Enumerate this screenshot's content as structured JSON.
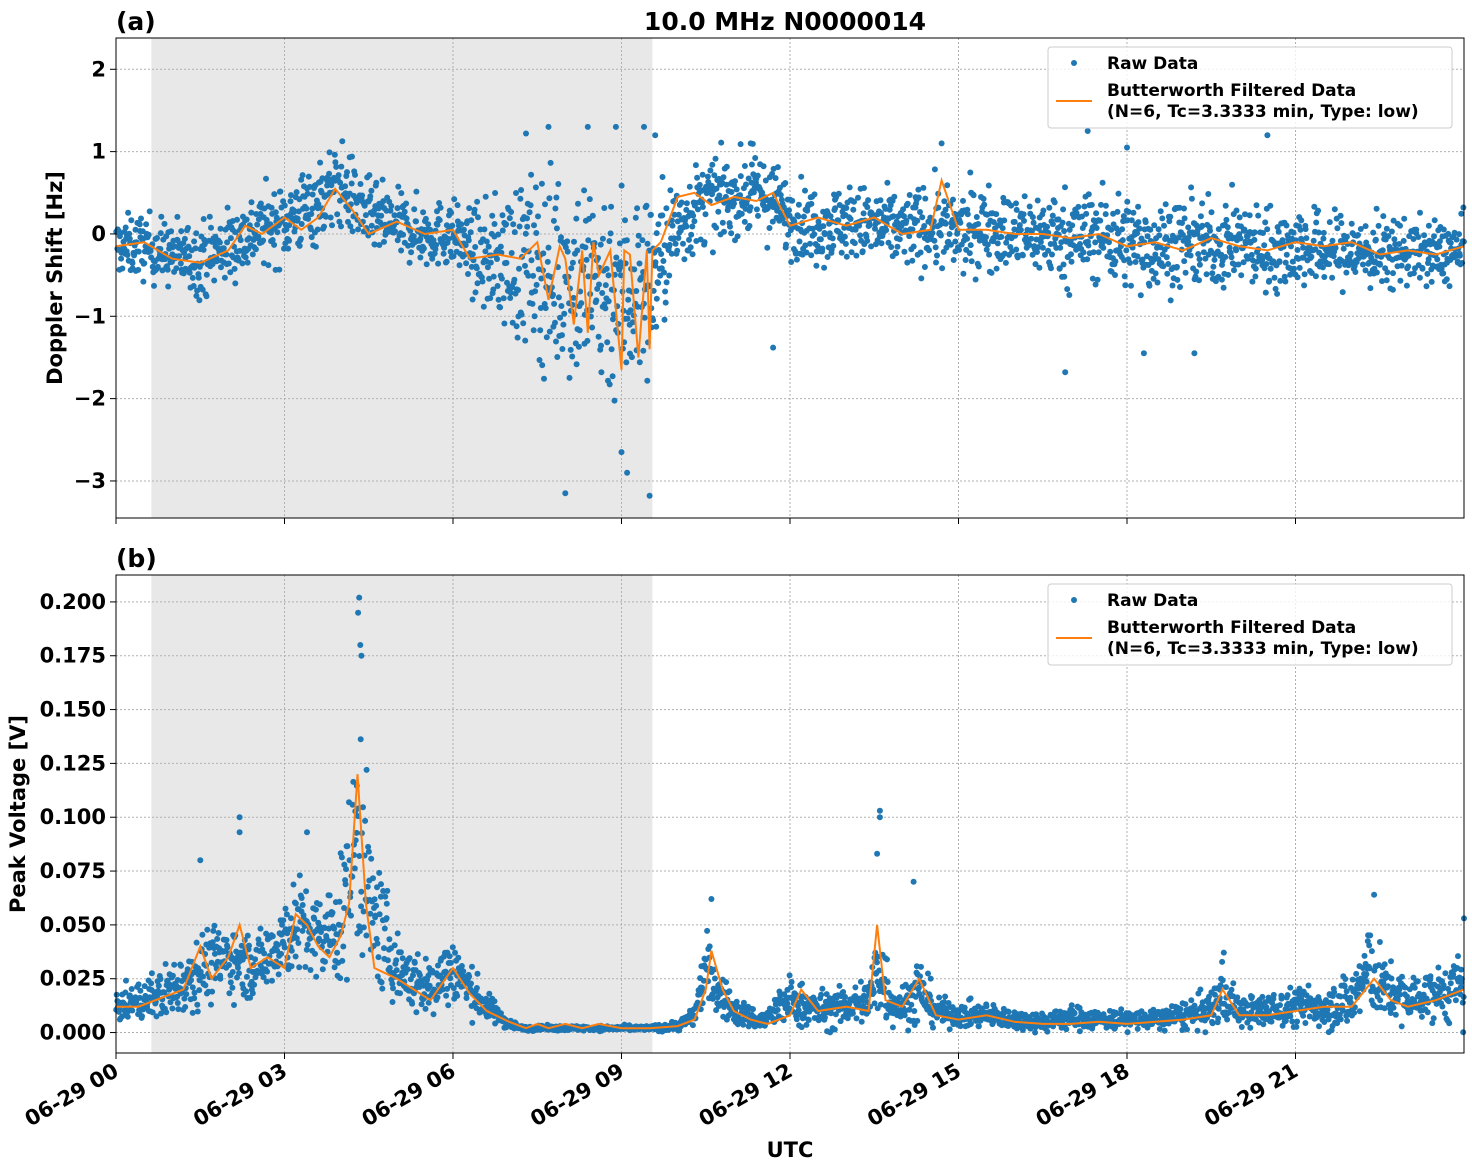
{
  "figure": {
    "title": "10.0 MHz N0000014",
    "xlabel": "UTC",
    "x_ticks": [
      "06-29 00",
      "06-29 03",
      "06-29 06",
      "06-29 09",
      "06-29 12",
      "06-29 15",
      "06-29 18",
      "06-29 21"
    ],
    "colors": {
      "raw": "#1f77b4",
      "filtered": "#ff7f0e",
      "shade": "#e8e8e8",
      "grid": "#b0b0b0"
    }
  },
  "legend": {
    "raw": "Raw Data",
    "filtered_line1": "Butterworth Filtered Data",
    "filtered_line2": "(N=6, Tc=3.3333 min, Type: low)"
  },
  "chart_data": [
    {
      "panel": "(a)",
      "type": "scatter",
      "ylabel": "Doppler Shift [Hz]",
      "xlim_hours": [
        0,
        24
      ],
      "ylim": [
        -3.45,
        2.38
      ],
      "y_ticks": [
        2,
        1,
        0,
        -1,
        -2,
        -3
      ],
      "y_tick_labels": [
        "2",
        "1",
        "0",
        "−1",
        "−2",
        "−3"
      ],
      "grid": true,
      "legend_position": "upper right",
      "shaded_interval_hours": [
        0.63,
        9.55
      ],
      "series": [
        {
          "name": "Raw Data",
          "kind": "scatter",
          "envelope": {
            "x_hours": [
              0,
              0.5,
              1,
              1.5,
              2,
              2.5,
              3,
              3.5,
              4,
              4.5,
              5,
              5.5,
              6,
              6.5,
              7,
              7.5,
              8,
              8.5,
              9,
              9.5,
              10,
              10.5,
              11,
              11.5,
              12,
              12.5,
              13,
              13.5,
              14,
              14.5,
              15,
              15.5,
              16,
              16.5,
              17,
              17.5,
              18,
              18.5,
              19,
              19.5,
              20,
              20.5,
              21,
              21.5,
              22,
              22.5,
              23,
              23.5,
              24
            ],
            "y_center": [
              -0.15,
              -0.15,
              -0.25,
              -0.3,
              -0.15,
              0.05,
              0.15,
              0.35,
              0.6,
              0.2,
              0.1,
              0.0,
              0.0,
              -0.3,
              -0.3,
              -0.4,
              -0.5,
              -0.6,
              -0.7,
              -0.6,
              0.1,
              0.4,
              0.45,
              0.5,
              0.2,
              0.1,
              0.15,
              0.1,
              0.05,
              0.1,
              0.0,
              0.1,
              0.0,
              0.0,
              -0.05,
              0.0,
              -0.1,
              -0.15,
              -0.1,
              -0.15,
              -0.1,
              -0.2,
              -0.15,
              -0.2,
              -0.2,
              -0.25,
              -0.2,
              -0.25,
              -0.2
            ],
            "spread": [
              0.3,
              0.35,
              0.35,
              0.4,
              0.4,
              0.4,
              0.4,
              0.45,
              0.45,
              0.4,
              0.35,
              0.35,
              0.35,
              0.5,
              0.8,
              1.0,
              1.1,
              1.2,
              1.2,
              1.0,
              0.5,
              0.45,
              0.4,
              0.45,
              0.4,
              0.4,
              0.4,
              0.4,
              0.4,
              0.45,
              0.45,
              0.45,
              0.4,
              0.45,
              0.5,
              0.5,
              0.5,
              0.5,
              0.45,
              0.45,
              0.45,
              0.45,
              0.45,
              0.4,
              0.4,
              0.4,
              0.35,
              0.35,
              0.35
            ]
          },
          "outliers": [
            [
              7.3,
              1.22
            ],
            [
              7.7,
              1.3
            ],
            [
              8.0,
              -3.15
            ],
            [
              8.4,
              1.3
            ],
            [
              9.4,
              1.3
            ],
            [
              9.1,
              -2.9
            ],
            [
              9.5,
              -3.18
            ],
            [
              9.0,
              -2.65
            ],
            [
              11.3,
              1.1
            ],
            [
              11.7,
              -1.38
            ],
            [
              14.7,
              1.1
            ],
            [
              16.9,
              -1.68
            ],
            [
              17.3,
              1.25
            ],
            [
              18.0,
              1.05
            ],
            [
              18.3,
              -1.45
            ],
            [
              19.2,
              -1.45
            ],
            [
              20.5,
              1.2
            ],
            [
              8.9,
              1.3
            ],
            [
              9.6,
              1.2
            ]
          ]
        },
        {
          "name": "Butterworth Filtered Data\n(N=6, Tc=3.3333 min, Type: low)",
          "kind": "line",
          "x_hours": [
            0,
            0.5,
            1,
            1.5,
            2,
            2.3,
            2.6,
            3,
            3.3,
            3.6,
            3.9,
            4.2,
            4.5,
            5,
            5.5,
            6,
            6.3,
            6.8,
            7.2,
            7.5,
            7.7,
            7.9,
            8.0,
            8.15,
            8.3,
            8.4,
            8.5,
            8.6,
            8.8,
            9.0,
            9.05,
            9.15,
            9.3,
            9.45,
            9.5,
            9.55,
            9.7,
            10.0,
            10.3,
            10.6,
            11.0,
            11.4,
            11.7,
            12.0,
            12.5,
            13.0,
            13.5,
            14.0,
            14.5,
            14.7,
            15.0,
            15.5,
            16.0,
            16.5,
            17.0,
            17.5,
            18.0,
            18.5,
            19.0,
            19.5,
            20.0,
            20.5,
            21.0,
            21.5,
            22.0,
            22.5,
            23.0,
            23.5,
            24.0
          ],
          "y": [
            -0.15,
            -0.1,
            -0.3,
            -0.35,
            -0.2,
            0.1,
            0.0,
            0.2,
            0.05,
            0.2,
            0.55,
            0.3,
            0.0,
            0.15,
            0.0,
            0.05,
            -0.3,
            -0.25,
            -0.3,
            -0.1,
            -0.8,
            -0.15,
            -0.3,
            -1.1,
            -0.2,
            -1.2,
            -0.1,
            -0.5,
            -0.2,
            -1.65,
            -0.2,
            -0.25,
            -1.5,
            -0.2,
            -1.4,
            -0.2,
            -0.1,
            0.45,
            0.5,
            0.35,
            0.45,
            0.4,
            0.5,
            0.1,
            0.2,
            0.1,
            0.2,
            0.0,
            0.05,
            0.65,
            0.05,
            0.05,
            0.0,
            0.0,
            -0.05,
            0.0,
            -0.15,
            -0.1,
            -0.2,
            -0.05,
            -0.15,
            -0.2,
            -0.1,
            -0.15,
            -0.1,
            -0.25,
            -0.2,
            -0.25,
            -0.15
          ]
        }
      ]
    },
    {
      "panel": "(b)",
      "type": "scatter",
      "ylabel": "Peak Voltage [V]",
      "xlim_hours": [
        0,
        24
      ],
      "ylim": [
        -0.0095,
        0.2125
      ],
      "y_ticks": [
        0.2,
        0.175,
        0.15,
        0.125,
        0.1,
        0.075,
        0.05,
        0.025,
        0.0
      ],
      "y_tick_labels": [
        "0.200",
        "0.175",
        "0.150",
        "0.125",
        "0.100",
        "0.075",
        "0.050",
        "0.025",
        "0.000"
      ],
      "grid": true,
      "legend_position": "upper right",
      "shaded_interval_hours": [
        0.63,
        9.55
      ],
      "series": [
        {
          "name": "Raw Data",
          "kind": "scatter",
          "envelope": {
            "x_hours": [
              0,
              0.5,
              1,
              1.5,
              2,
              2.5,
              3,
              3.3,
              3.6,
              4.0,
              4.2,
              4.35,
              4.5,
              5.0,
              5.5,
              6.0,
              6.3,
              6.6,
              6.9,
              7.2,
              8.0,
              9.0,
              9.5,
              10.0,
              10.3,
              10.5,
              10.7,
              11.0,
              11.5,
              12.0,
              12.5,
              13.0,
              13.4,
              13.6,
              13.8,
              14.0,
              14.3,
              14.6,
              15.0,
              15.5,
              16.0,
              16.5,
              17.0,
              17.5,
              18.0,
              18.5,
              19.0,
              19.5,
              19.7,
              20.0,
              20.5,
              21.0,
              21.5,
              22.0,
              22.3,
              22.6,
              23.0,
              23.5,
              24.0
            ],
            "y_center": [
              0.012,
              0.015,
              0.02,
              0.03,
              0.035,
              0.03,
              0.045,
              0.05,
              0.042,
              0.05,
              0.08,
              0.1,
              0.06,
              0.03,
              0.02,
              0.03,
              0.02,
              0.012,
              0.006,
              0.002,
              0.002,
              0.002,
              0.002,
              0.003,
              0.008,
              0.03,
              0.02,
              0.01,
              0.005,
              0.015,
              0.01,
              0.012,
              0.015,
              0.03,
              0.015,
              0.012,
              0.02,
              0.01,
              0.008,
              0.008,
              0.006,
              0.005,
              0.007,
              0.006,
              0.006,
              0.006,
              0.008,
              0.01,
              0.02,
              0.01,
              0.01,
              0.012,
              0.012,
              0.015,
              0.03,
              0.02,
              0.015,
              0.018,
              0.02
            ],
            "spread": [
              0.006,
              0.008,
              0.012,
              0.015,
              0.015,
              0.012,
              0.018,
              0.02,
              0.018,
              0.025,
              0.04,
              0.06,
              0.03,
              0.015,
              0.012,
              0.015,
              0.01,
              0.006,
              0.003,
              0.001,
              0.001,
              0.001,
              0.001,
              0.002,
              0.004,
              0.015,
              0.01,
              0.006,
              0.004,
              0.01,
              0.008,
              0.008,
              0.01,
              0.025,
              0.01,
              0.008,
              0.015,
              0.006,
              0.005,
              0.005,
              0.004,
              0.004,
              0.005,
              0.004,
              0.004,
              0.004,
              0.006,
              0.008,
              0.015,
              0.006,
              0.007,
              0.008,
              0.009,
              0.012,
              0.02,
              0.012,
              0.01,
              0.01,
              0.015
            ]
          },
          "outliers": [
            [
              4.33,
              0.202
            ],
            [
              4.31,
              0.195
            ],
            [
              4.35,
              0.18
            ],
            [
              4.37,
              0.175
            ],
            [
              2.2,
              0.1
            ],
            [
              2.2,
              0.093
            ],
            [
              1.5,
              0.08
            ],
            [
              3.4,
              0.093
            ],
            [
              13.6,
              0.103
            ],
            [
              13.6,
              0.1
            ],
            [
              13.55,
              0.083
            ],
            [
              14.2,
              0.07
            ],
            [
              22.4,
              0.064
            ],
            [
              24.0,
              0.053
            ],
            [
              10.6,
              0.062
            ]
          ]
        },
        {
          "name": "Butterworth Filtered Data\n(N=6, Tc=3.3333 min, Type: low)",
          "kind": "line",
          "x_hours": [
            0,
            0.4,
            0.8,
            1.2,
            1.5,
            1.7,
            2.0,
            2.2,
            2.4,
            2.7,
            3.0,
            3.2,
            3.4,
            3.6,
            3.8,
            4.0,
            4.15,
            4.3,
            4.45,
            4.6,
            5.0,
            5.3,
            5.6,
            6.0,
            6.3,
            6.6,
            7.0,
            7.3,
            7.5,
            7.7,
            8.0,
            8.3,
            8.6,
            9.0,
            9.5,
            10.0,
            10.3,
            10.5,
            10.6,
            10.8,
            11.0,
            11.3,
            11.6,
            12.0,
            12.2,
            12.5,
            13.0,
            13.4,
            13.55,
            13.7,
            14.0,
            14.3,
            14.6,
            15.0,
            15.5,
            16.0,
            16.5,
            17.0,
            17.5,
            18.0,
            18.5,
            19.0,
            19.5,
            19.7,
            20.0,
            20.5,
            21.0,
            21.5,
            22.0,
            22.4,
            22.7,
            23.0,
            23.5,
            24.0
          ],
          "y": [
            0.012,
            0.012,
            0.016,
            0.02,
            0.04,
            0.025,
            0.035,
            0.05,
            0.03,
            0.035,
            0.03,
            0.055,
            0.05,
            0.04,
            0.035,
            0.045,
            0.06,
            0.12,
            0.06,
            0.03,
            0.025,
            0.02,
            0.015,
            0.03,
            0.018,
            0.01,
            0.005,
            0.002,
            0.004,
            0.002,
            0.004,
            0.002,
            0.004,
            0.002,
            0.002,
            0.003,
            0.006,
            0.02,
            0.038,
            0.02,
            0.01,
            0.006,
            0.004,
            0.008,
            0.02,
            0.01,
            0.012,
            0.01,
            0.05,
            0.015,
            0.012,
            0.025,
            0.008,
            0.006,
            0.008,
            0.005,
            0.004,
            0.004,
            0.005,
            0.004,
            0.005,
            0.006,
            0.008,
            0.02,
            0.008,
            0.008,
            0.01,
            0.012,
            0.012,
            0.025,
            0.015,
            0.012,
            0.015,
            0.02
          ]
        }
      ]
    }
  ]
}
